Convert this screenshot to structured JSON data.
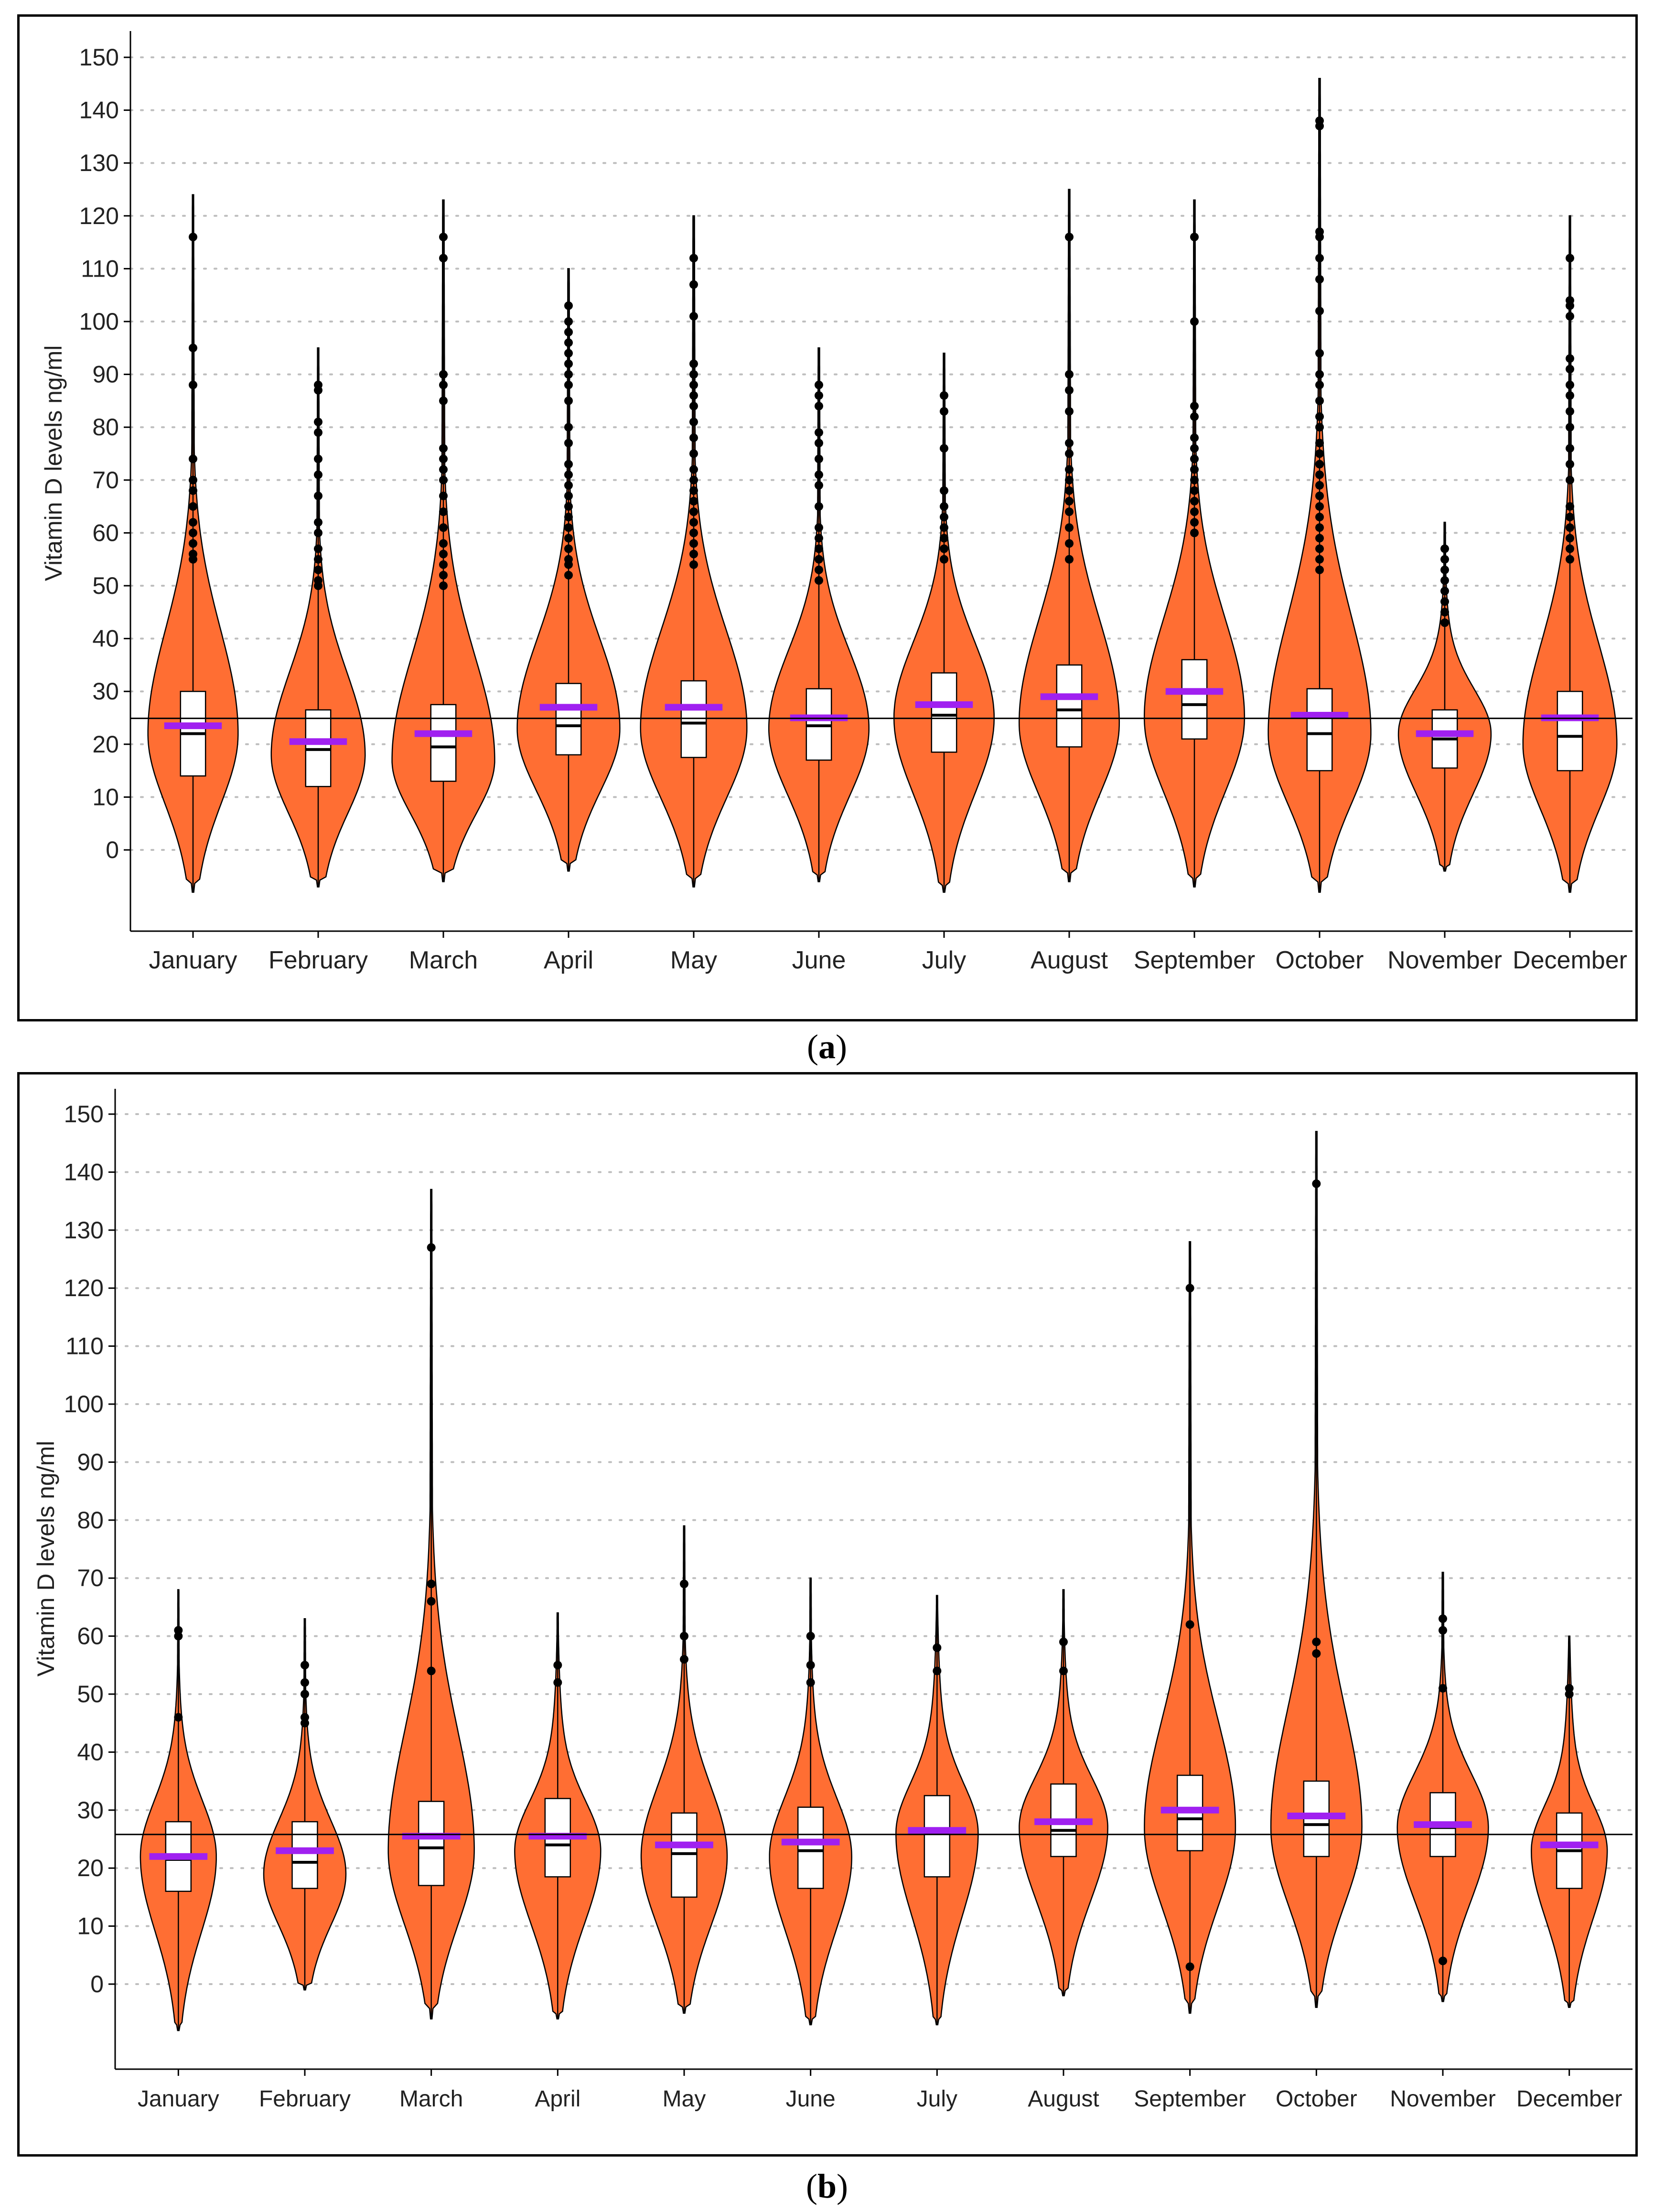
{
  "chart_data": [
    {
      "type": "violin",
      "panel_label": "a",
      "ylabel": "Vitamin D levels ng/ml",
      "ylim": [
        -8,
        155
      ],
      "yticks": [
        0,
        10,
        20,
        30,
        40,
        50,
        60,
        70,
        80,
        90,
        100,
        110,
        120,
        130,
        140,
        150
      ],
      "categories": [
        "January",
        "February",
        "March",
        "April",
        "May",
        "June",
        "July",
        "August",
        "September",
        "October",
        "November",
        "December"
      ],
      "reference_line": 24.9,
      "grid": true,
      "series": [
        {
          "q1": 14,
          "median": 22,
          "q3": 30,
          "mean": 23.5,
          "min": -8,
          "max": 124,
          "mode": 22,
          "width": 0.72,
          "outliers": [
            55,
            56,
            58,
            60,
            62,
            65,
            68,
            70,
            74,
            88,
            95,
            116
          ]
        },
        {
          "q1": 12,
          "median": 19,
          "q3": 26.5,
          "mean": 20.5,
          "min": -7,
          "max": 95,
          "mode": 18,
          "width": 0.75,
          "outliers": [
            50,
            51,
            53,
            55,
            57,
            60,
            62,
            67,
            71,
            74,
            79,
            81,
            87,
            88
          ]
        },
        {
          "q1": 13,
          "median": 19.5,
          "q3": 27.5,
          "mean": 22,
          "min": -6,
          "max": 123,
          "mode": 17,
          "width": 0.82,
          "outliers": [
            50,
            52,
            54,
            56,
            58,
            61,
            64,
            67,
            70,
            72,
            74,
            76,
            85,
            88,
            90,
            112,
            116
          ]
        },
        {
          "q1": 18,
          "median": 23.5,
          "q3": 31.5,
          "mean": 27,
          "min": -4,
          "max": 110,
          "mode": 23,
          "width": 0.82,
          "outliers": [
            52,
            54,
            55,
            57,
            59,
            61,
            63,
            65,
            67,
            69,
            71,
            73,
            77,
            80,
            85,
            88,
            90,
            92,
            94,
            96,
            98,
            100,
            103
          ]
        },
        {
          "q1": 17.5,
          "median": 24,
          "q3": 32,
          "mean": 27,
          "min": -7,
          "max": 120,
          "mode": 23,
          "width": 0.85,
          "outliers": [
            54,
            56,
            58,
            60,
            62,
            64,
            66,
            68,
            70,
            72,
            75,
            78,
            81,
            84,
            86,
            88,
            90,
            92,
            101,
            107,
            112
          ]
        },
        {
          "q1": 17,
          "median": 23.5,
          "q3": 30.5,
          "mean": 25,
          "min": -6,
          "max": 95,
          "mode": 23,
          "width": 0.8,
          "outliers": [
            51,
            53,
            55,
            57,
            59,
            61,
            65,
            69,
            71,
            74,
            77,
            79,
            84,
            86,
            88
          ]
        },
        {
          "q1": 18.5,
          "median": 25.5,
          "q3": 33.5,
          "mean": 27.5,
          "min": -8,
          "max": 94,
          "mode": 25,
          "width": 0.8,
          "outliers": [
            55,
            57,
            59,
            61,
            63,
            65,
            68,
            76,
            83,
            86
          ]
        },
        {
          "q1": 19.5,
          "median": 26.5,
          "q3": 35,
          "mean": 29,
          "min": -6,
          "max": 125,
          "mode": 24,
          "width": 0.8,
          "outliers": [
            55,
            58,
            61,
            64,
            66,
            68,
            70,
            72,
            75,
            77,
            83,
            87,
            90,
            116
          ]
        },
        {
          "q1": 21,
          "median": 27.5,
          "q3": 36,
          "mean": 30,
          "min": -7,
          "max": 123,
          "mode": 25,
          "width": 0.8,
          "outliers": [
            60,
            62,
            64,
            66,
            68,
            70,
            72,
            74,
            76,
            78,
            82,
            84,
            100,
            116
          ]
        },
        {
          "q1": 15,
          "median": 22,
          "q3": 30.5,
          "mean": 25.5,
          "min": -8,
          "max": 146,
          "mode": 22,
          "width": 0.82,
          "outliers": [
            53,
            55,
            57,
            59,
            61,
            63,
            65,
            67,
            69,
            71,
            73,
            75,
            77,
            80,
            82,
            85,
            88,
            90,
            94,
            102,
            108,
            112,
            116,
            117,
            137,
            138
          ]
        },
        {
          "q1": 15.5,
          "median": 21,
          "q3": 26.5,
          "mean": 22,
          "min": -4,
          "max": 62,
          "mode": 22,
          "width": 0.74,
          "outliers": [
            43,
            45,
            47,
            49,
            51,
            53,
            55,
            57
          ]
        },
        {
          "q1": 15,
          "median": 21.5,
          "q3": 30,
          "mean": 25,
          "min": -8,
          "max": 120,
          "mode": 20,
          "width": 0.75,
          "outliers": [
            55,
            57,
            59,
            61,
            63,
            65,
            70,
            73,
            76,
            80,
            83,
            86,
            88,
            91,
            93,
            101,
            103,
            104,
            112
          ]
        }
      ]
    },
    {
      "type": "violin",
      "panel_label": "b",
      "ylabel": "Vitamin D levels ng/ml",
      "ylim": [
        -8,
        155
      ],
      "yticks": [
        0,
        10,
        20,
        30,
        40,
        50,
        60,
        70,
        80,
        90,
        100,
        110,
        120,
        130,
        140,
        150
      ],
      "categories": [
        "January",
        "February",
        "March",
        "April",
        "May",
        "June",
        "July",
        "August",
        "September",
        "October",
        "November",
        "December"
      ],
      "reference_line": 25.8,
      "grid": true,
      "series": [
        {
          "q1": 16,
          "median": 21.5,
          "q3": 28,
          "mean": 22,
          "min": -8,
          "max": 68,
          "mode": 22,
          "width": 0.6,
          "outliers": [
            46,
            60,
            61
          ]
        },
        {
          "q1": 16.5,
          "median": 21,
          "q3": 28,
          "mean": 23,
          "min": -1,
          "max": 63,
          "mode": 19,
          "width": 0.65,
          "outliers": [
            45,
            46,
            50,
            52,
            55
          ]
        },
        {
          "q1": 17,
          "median": 23.5,
          "q3": 31.5,
          "mean": 25.5,
          "min": -6,
          "max": 137,
          "mode": 23,
          "width": 0.68,
          "outliers": [
            54,
            66,
            69,
            127
          ]
        },
        {
          "q1": 18.5,
          "median": 24,
          "q3": 32,
          "mean": 25.5,
          "min": -6,
          "max": 64,
          "mode": 23,
          "width": 0.68,
          "outliers": [
            52,
            55
          ]
        },
        {
          "q1": 15,
          "median": 22.5,
          "q3": 29.5,
          "mean": 24,
          "min": -5,
          "max": 79,
          "mode": 22,
          "width": 0.68,
          "outliers": [
            56,
            60,
            69
          ]
        },
        {
          "q1": 16.5,
          "median": 23,
          "q3": 30.5,
          "mean": 24.5,
          "min": -7,
          "max": 70,
          "mode": 22,
          "width": 0.65,
          "outliers": [
            52,
            55,
            60
          ]
        },
        {
          "q1": 18.5,
          "median": 26,
          "q3": 32.5,
          "mean": 26.5,
          "min": -7,
          "max": 67,
          "mode": 26,
          "width": 0.65,
          "outliers": [
            54,
            58
          ]
        },
        {
          "q1": 22,
          "median": 26.5,
          "q3": 34.5,
          "mean": 28,
          "min": -2,
          "max": 68,
          "mode": 27,
          "width": 0.7,
          "outliers": [
            54,
            59
          ]
        },
        {
          "q1": 23,
          "median": 28.5,
          "q3": 36,
          "mean": 30,
          "min": -5,
          "max": 128,
          "mode": 27,
          "width": 0.72,
          "outliers": [
            3,
            62,
            120
          ]
        },
        {
          "q1": 22,
          "median": 27.5,
          "q3": 35,
          "mean": 29,
          "min": -4,
          "max": 147,
          "mode": 27,
          "width": 0.72,
          "outliers": [
            57,
            59,
            138
          ]
        },
        {
          "q1": 22,
          "median": 27,
          "q3": 33,
          "mean": 27.5,
          "min": -3,
          "max": 71,
          "mode": 27,
          "width": 0.72,
          "outliers": [
            4,
            51,
            61,
            63
          ]
        },
        {
          "q1": 16.5,
          "median": 23,
          "q3": 29.5,
          "mean": 24,
          "min": -4,
          "max": 60,
          "mode": 23,
          "width": 0.6,
          "outliers": [
            50,
            51
          ]
        }
      ]
    }
  ],
  "captions": {
    "a": "(a)",
    "b": "(b)"
  },
  "colors": {
    "violin": "#FF6E33",
    "mean": "#A020F0",
    "box": "#ffffff",
    "grid": "#BEBEBE"
  }
}
